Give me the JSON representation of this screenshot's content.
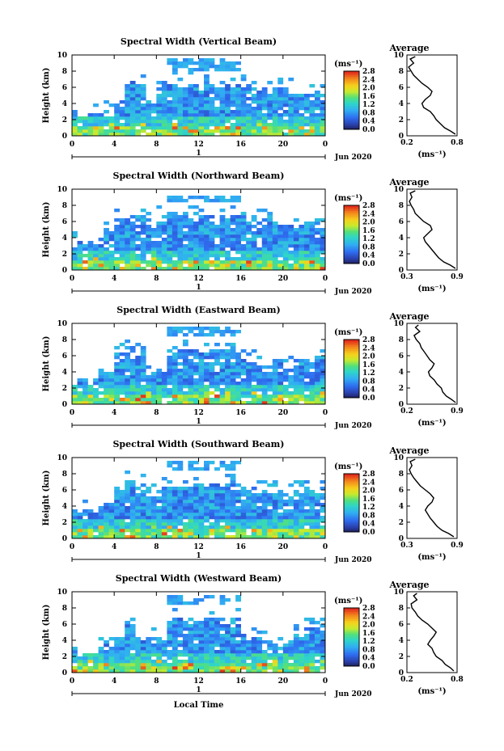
{
  "figure": {
    "x_label": "Local Time",
    "date_label": "Jun 2020",
    "day_label": "1",
    "profile_title": "Average"
  },
  "chart_data": [
    {
      "type": "heatmap",
      "title": "Spectral Width (Vertical Beam)",
      "xlabel": "",
      "ylabel": "Height (km)",
      "xlim": [
        0,
        24
      ],
      "ylim": [
        0,
        10
      ],
      "xticks": [
        "0",
        "4",
        "8",
        "12",
        "16",
        "20",
        "0"
      ],
      "yticks": [
        "0",
        "2",
        "4",
        "6",
        "8",
        "10"
      ],
      "colorbar": {
        "unit": "(ms⁻¹)",
        "ticks": [
          "0.0",
          "0.4",
          "0.8",
          "1.2",
          "1.6",
          "2.0",
          "2.4",
          "2.8"
        ],
        "range": [
          0,
          2.8
        ]
      },
      "cloud_top_km": [
        2.8,
        3.0,
        3.0,
        3.2,
        4.5,
        6.8,
        6.5,
        4.5,
        6.8,
        6.8,
        6.9,
        6.8,
        6.9,
        6.8,
        6.9,
        6.7,
        6.5,
        6.2,
        6.0,
        6.0,
        5.9,
        5.8,
        5.8,
        5.2,
        4.0
      ],
      "upper_layer_km": [
        8.0,
        9.5
      ],
      "profile": {
        "xlim": [
          0.2,
          0.8
        ],
        "xticks": [
          "0.2",
          "0.8"
        ],
        "xlabel": "(ms⁻¹)",
        "height_km": [
          0.2,
          0.6,
          1.0,
          1.5,
          2.0,
          2.5,
          3.0,
          3.5,
          4.0,
          4.5,
          5.0,
          5.5,
          6.0,
          6.5,
          7.0,
          7.5,
          8.0,
          8.5,
          9.0,
          9.5,
          9.8
        ],
        "width": [
          0.78,
          0.72,
          0.65,
          0.6,
          0.55,
          0.52,
          0.48,
          0.4,
          0.38,
          0.42,
          0.48,
          0.5,
          0.45,
          0.38,
          0.33,
          0.28,
          0.25,
          0.22,
          0.28,
          0.24,
          0.3
        ]
      }
    },
    {
      "type": "heatmap",
      "title": "Spectral Width (Northward Beam)",
      "xlabel": "",
      "ylabel": "Height (km)",
      "xlim": [
        0,
        24
      ],
      "ylim": [
        0,
        10
      ],
      "xticks": [
        "0",
        "4",
        "8",
        "12",
        "16",
        "20",
        "0"
      ],
      "yticks": [
        "0",
        "2",
        "4",
        "6",
        "8",
        "10"
      ],
      "colorbar": {
        "unit": "(ms⁻¹)",
        "ticks": [
          "0.0",
          "0.4",
          "0.8",
          "1.2",
          "1.6",
          "2.0",
          "2.4",
          "2.8"
        ],
        "range": [
          0,
          2.8
        ]
      },
      "cloud_top_km": [
        3.5,
        3.8,
        4.0,
        5.5,
        6.5,
        6.8,
        7.0,
        6.5,
        6.8,
        7.0,
        7.0,
        6.9,
        7.0,
        6.9,
        7.0,
        6.9,
        6.8,
        6.5,
        6.4,
        6.3,
        6.2,
        6.0,
        6.0,
        6.1,
        6.0
      ],
      "upper_layer_km": [
        8.5,
        9.3
      ],
      "profile": {
        "xlim": [
          0.3,
          0.9
        ],
        "xticks": [
          "0.3",
          "0.9"
        ],
        "xlabel": "(ms⁻¹)",
        "height_km": [
          0.2,
          0.6,
          1.0,
          1.5,
          2.0,
          2.5,
          3.0,
          3.5,
          4.0,
          4.5,
          5.0,
          5.5,
          6.0,
          6.5,
          7.0,
          7.5,
          8.0,
          8.5,
          9.0,
          9.5,
          9.8
        ],
        "width": [
          0.88,
          0.82,
          0.74,
          0.68,
          0.64,
          0.6,
          0.56,
          0.52,
          0.5,
          0.55,
          0.6,
          0.58,
          0.5,
          0.45,
          0.4,
          0.38,
          0.35,
          0.33,
          0.36,
          0.34,
          0.4
        ]
      }
    },
    {
      "type": "heatmap",
      "title": "Spectral Width (Eastward Beam)",
      "xlabel": "",
      "ylabel": "Height (km)",
      "xlim": [
        0,
        24
      ],
      "ylim": [
        0,
        10
      ],
      "xticks": [
        "0",
        "4",
        "8",
        "12",
        "16",
        "20",
        "0"
      ],
      "yticks": [
        "0",
        "2",
        "4",
        "6",
        "8",
        "10"
      ],
      "colorbar": {
        "unit": "(ms⁻¹)",
        "ticks": [
          "0.0",
          "0.4",
          "0.8",
          "1.2",
          "1.6",
          "2.0",
          "2.4",
          "2.8"
        ],
        "range": [
          0,
          2.8
        ]
      },
      "cloud_top_km": [
        3.0,
        3.2,
        3.5,
        4.0,
        6.5,
        7.2,
        6.8,
        4.5,
        4.5,
        7.0,
        7.0,
        7.0,
        7.0,
        7.0,
        7.0,
        7.0,
        6.0,
        5.5,
        5.0,
        5.2,
        5.0,
        5.5,
        5.8,
        6.0,
        6.0
      ],
      "upper_layer_km": [
        8.5,
        9.5
      ],
      "profile": {
        "xlim": [
          0.2,
          0.9
        ],
        "xticks": [
          "0.2",
          "0.9"
        ],
        "xlabel": "(ms⁻¹)",
        "height_km": [
          0.2,
          0.6,
          1.0,
          1.5,
          2.0,
          2.5,
          3.0,
          3.5,
          4.0,
          4.5,
          5.0,
          5.5,
          6.0,
          6.5,
          7.0,
          7.5,
          8.0,
          8.5,
          9.0,
          9.5,
          9.8
        ],
        "width": [
          0.88,
          0.82,
          0.75,
          0.7,
          0.68,
          0.62,
          0.58,
          0.52,
          0.5,
          0.55,
          0.58,
          0.52,
          0.48,
          0.44,
          0.4,
          0.38,
          0.33,
          0.3,
          0.38,
          0.32,
          0.36
        ]
      }
    },
    {
      "type": "heatmap",
      "title": "Spectral Width (Southward Beam)",
      "xlabel": "",
      "ylabel": "Height (km)",
      "xlim": [
        0,
        24
      ],
      "ylim": [
        0,
        10
      ],
      "xticks": [
        "0",
        "4",
        "8",
        "12",
        "16",
        "20",
        "0"
      ],
      "yticks": [
        "0",
        "2",
        "4",
        "6",
        "8",
        "10"
      ],
      "colorbar": {
        "unit": "(ms⁻¹)",
        "ticks": [
          "0.0",
          "0.4",
          "0.8",
          "1.2",
          "1.6",
          "2.0",
          "2.4",
          "2.8"
        ],
        "range": [
          0,
          2.8
        ]
      },
      "cloud_top_km": [
        3.5,
        3.8,
        4.2,
        5.0,
        6.5,
        7.2,
        6.8,
        6.0,
        6.5,
        7.0,
        7.0,
        7.0,
        7.0,
        7.0,
        7.0,
        6.8,
        6.6,
        6.4,
        6.2,
        6.2,
        6.1,
        6.0,
        6.2,
        6.0,
        6.0
      ],
      "upper_layer_km": [
        8.5,
        9.5
      ],
      "profile": {
        "xlim": [
          0.3,
          0.9
        ],
        "xticks": [
          "0.3",
          "0.9"
        ],
        "xlabel": "(ms⁻¹)",
        "height_km": [
          0.2,
          0.6,
          1.0,
          1.5,
          2.0,
          2.5,
          3.0,
          3.5,
          4.0,
          4.5,
          5.0,
          5.5,
          6.0,
          6.5,
          7.0,
          7.5,
          8.0,
          8.5,
          9.0,
          9.5,
          9.8
        ],
        "width": [
          0.86,
          0.8,
          0.72,
          0.66,
          0.62,
          0.58,
          0.55,
          0.52,
          0.55,
          0.6,
          0.62,
          0.58,
          0.52,
          0.46,
          0.42,
          0.38,
          0.35,
          0.33,
          0.36,
          0.34,
          0.4
        ]
      }
    },
    {
      "type": "heatmap",
      "title": "Spectral Width (Westward Beam)",
      "xlabel": "",
      "ylabel": "Height (km)",
      "xlim": [
        0,
        24
      ],
      "ylim": [
        0,
        10
      ],
      "xticks": [
        "0",
        "4",
        "8",
        "12",
        "16",
        "20",
        "0"
      ],
      "yticks": [
        "0",
        "2",
        "4",
        "6",
        "8",
        "10"
      ],
      "colorbar": {
        "unit": "(ms⁻¹)",
        "ticks": [
          "0.0",
          "0.4",
          "0.8",
          "1.2",
          "1.6",
          "2.0",
          "2.4",
          "2.8"
        ],
        "range": [
          0,
          2.8
        ]
      },
      "cloud_top_km": [
        2.8,
        3.0,
        3.2,
        3.5,
        5.0,
        6.5,
        4.5,
        4.5,
        4.5,
        7.0,
        7.0,
        7.0,
        7.0,
        7.0,
        6.9,
        6.8,
        5.0,
        4.5,
        4.2,
        4.0,
        4.5,
        5.0,
        5.5,
        6.0,
        6.0
      ],
      "upper_layer_km": [
        8.5,
        9.5
      ],
      "profile": {
        "xlim": [
          0.2,
          0.8
        ],
        "xticks": [
          "0.2",
          "0.8"
        ],
        "xlabel": "(ms⁻¹)",
        "height_km": [
          0.2,
          0.6,
          1.0,
          1.5,
          2.0,
          2.5,
          3.0,
          3.5,
          4.0,
          4.5,
          5.0,
          5.5,
          6.0,
          6.5,
          7.0,
          7.5,
          8.0,
          8.5,
          9.0,
          9.5,
          9.8
        ],
        "width": [
          0.76,
          0.72,
          0.66,
          0.62,
          0.55,
          0.52,
          0.5,
          0.45,
          0.48,
          0.52,
          0.55,
          0.5,
          0.45,
          0.38,
          0.33,
          0.3,
          0.26,
          0.25,
          0.32,
          0.28,
          0.32
        ]
      }
    }
  ]
}
